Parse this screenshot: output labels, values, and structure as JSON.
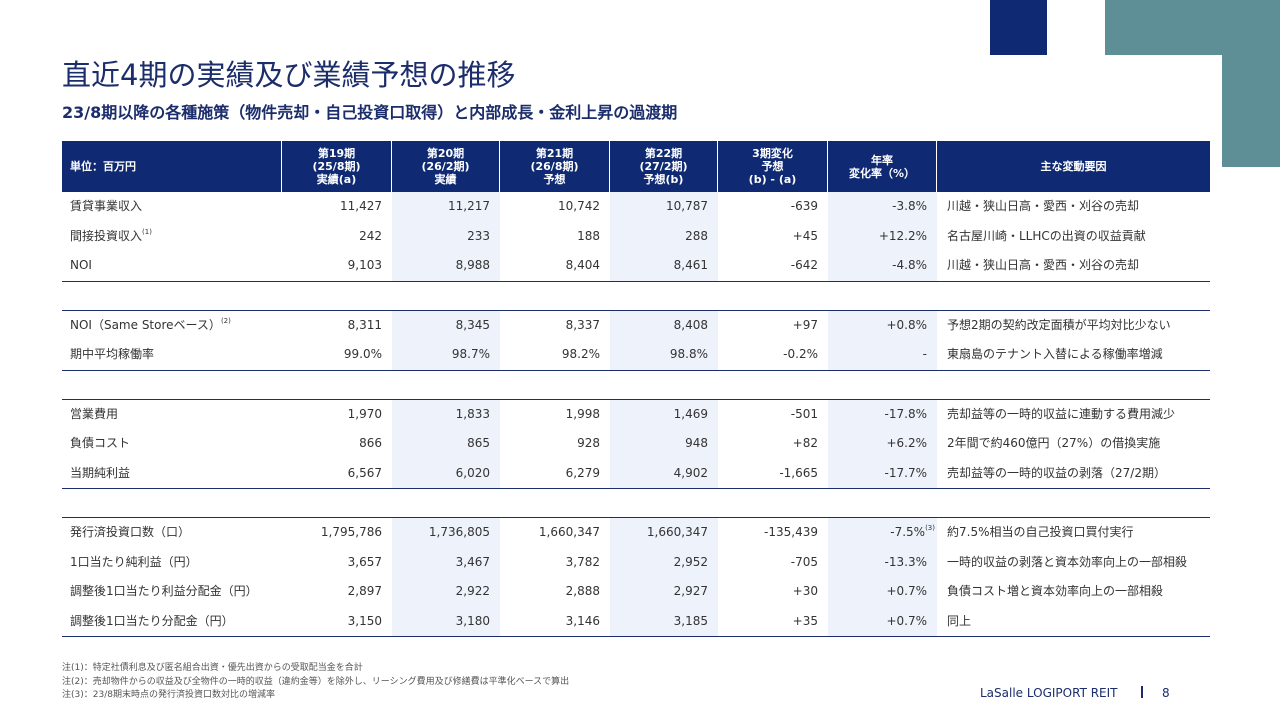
{
  "header": {
    "title": "直近4期の実績及び業績予想の推移",
    "subtitle": "23/8期以降の各種施策（物件売却・自己投資口取得）と内部成長・金利上昇の過渡期"
  },
  "table": {
    "columns": [
      [
        "単位：百万円"
      ],
      [
        "第19期",
        "(25/8期)",
        "実績(a)"
      ],
      [
        "第20期",
        "(26/2期)",
        "実績"
      ],
      [
        "第21期",
        "(26/8期)",
        "予想"
      ],
      [
        "第22期",
        "(27/2期)",
        "予想(b)"
      ],
      [
        "3期変化",
        "予想",
        "(b) - (a)"
      ],
      [
        "年率",
        "変化率（%）"
      ],
      [
        "主な変動要因"
      ]
    ],
    "groups": [
      {
        "rows": [
          {
            "label": "賃貸事業収入",
            "cells": [
              "11,427",
              "11,217",
              "10,742",
              "10,787",
              "-639",
              "-3.8%"
            ],
            "cause": "川越・狭山日高・愛西・刈谷の売却"
          },
          {
            "label": "間接投資収入",
            "note": "(1)",
            "cells": [
              "242",
              "233",
              "188",
              "288",
              "+45",
              "+12.2%"
            ],
            "cause": "名古屋川崎・LLHCの出資の収益貢献"
          },
          {
            "label": "NOI",
            "cells": [
              "9,103",
              "8,988",
              "8,404",
              "8,461",
              "-642",
              "-4.8%"
            ],
            "cause": "川越・狭山日高・愛西・刈谷の売却"
          }
        ]
      },
      {
        "rows": [
          {
            "label": "NOI（Same Storeベース）",
            "note": "(2)",
            "cells": [
              "8,311",
              "8,345",
              "8,337",
              "8,408",
              "+97",
              "+0.8%"
            ],
            "cause": "予想2期の契約改定面積が平均対比少ない"
          },
          {
            "label": "期中平均稼働率",
            "cells": [
              "99.0%",
              "98.7%",
              "98.2%",
              "98.8%",
              "-0.2%",
              "-"
            ],
            "cause": "東扇島のテナント入替による稼働率増減"
          }
        ]
      },
      {
        "rows": [
          {
            "label": "営業費用",
            "cells": [
              "1,970",
              "1,833",
              "1,998",
              "1,469",
              "-501",
              "-17.8%"
            ],
            "cause": "売却益等の一時的収益に連動する費用減少"
          },
          {
            "label": "負債コスト",
            "cells": [
              "866",
              "865",
              "928",
              "948",
              "+82",
              "+6.2%"
            ],
            "cause": "2年間で約460億円（27%）の借換実施"
          },
          {
            "label": "当期純利益",
            "cells": [
              "6,567",
              "6,020",
              "6,279",
              "4,902",
              "-1,665",
              "-17.7%"
            ],
            "cause": "売却益等の一時的収益の剥落（27/2期）"
          }
        ]
      },
      {
        "rows": [
          {
            "label": "発行済投資口数（口）",
            "cells": [
              "1,795,786",
              "1,736,805",
              "1,660,347",
              "1,660,347",
              "-135,439",
              "-7.5%"
            ],
            "rate_note": "(3)",
            "cause": "約7.5%相当の自己投資口買付実行"
          },
          {
            "label": "1口当たり純利益（円）",
            "cells": [
              "3,657",
              "3,467",
              "3,782",
              "2,952",
              "-705",
              "-13.3%"
            ],
            "cause": "一時的収益の剥落と資本効率向上の一部相殺"
          },
          {
            "label": "調整後1口当たり利益分配金（円）",
            "cells": [
              "2,897",
              "2,922",
              "2,888",
              "2,927",
              "+30",
              "+0.7%"
            ],
            "cause": "負債コスト増と資本効率向上の一部相殺"
          },
          {
            "label": "調整後1口当たり分配金（円）",
            "cells": [
              "3,150",
              "3,180",
              "3,146",
              "3,185",
              "+35",
              "+0.7%"
            ],
            "cause": "同上"
          }
        ]
      }
    ]
  },
  "notes": [
    "注(1)：特定社債利息及び匿名組合出資・優先出資からの受取配当金を合計",
    "注(2)：売却物件からの収益及び全物件の一時的収益（違約金等）を除外し、リーシング費用及び修繕費は平準化ベースで算出",
    "注(3)：23/8期末時点の発行済投資口数対比の増減率"
  ],
  "footer": {
    "brand": "LaSalle LOGIPORT REIT",
    "page": "8"
  }
}
